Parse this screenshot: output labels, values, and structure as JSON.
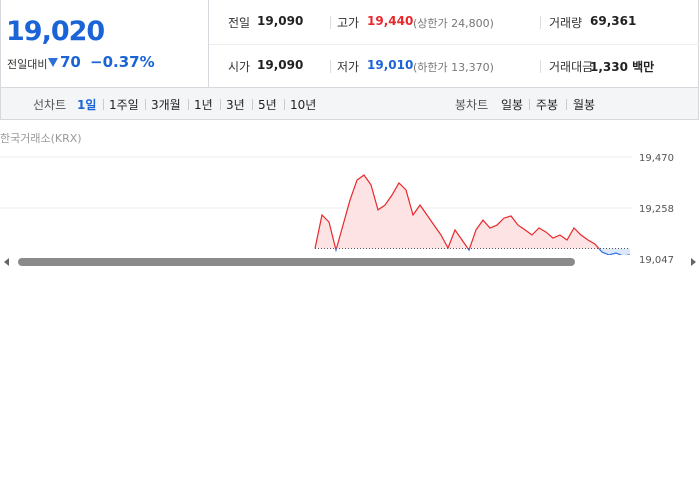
{
  "quote": {
    "price": "19,020",
    "change_label": "전일대비",
    "change": "70",
    "change_pct": "−0.37%"
  },
  "stats": [
    [
      {
        "label": "전일",
        "value": "19,090"
      },
      {
        "label": "고가",
        "value": "19,440",
        "note": "(상한가 24,800)"
      },
      {
        "label": "거래량",
        "value": "69,361"
      }
    ],
    [
      {
        "label": "시가",
        "value": "19,090"
      },
      {
        "label": "저가",
        "value": "19,010",
        "note": "(하한가 13,370)"
      },
      {
        "label": "거래대금",
        "value": "1,330 백만"
      }
    ]
  ],
  "toolbar": {
    "line_label": "선차트",
    "periods": [
      "1일",
      "1주일",
      "3개월",
      "1년",
      "3년",
      "5년",
      "10년"
    ],
    "selected": 0,
    "candle_label": "봉차트",
    "candles": [
      "일봉",
      "주봉",
      "월봉"
    ]
  },
  "source": "한국거래소(KRX)",
  "chart_data": {
    "type": "line",
    "values": [
      19090,
      19229,
      19200,
      19083,
      19187,
      19291,
      19374,
      19395,
      19354,
      19250,
      19270,
      19312,
      19362,
      19333,
      19229,
      19270,
      19229,
      19187,
      19146,
      19092,
      19167,
      19125,
      19083,
      19167,
      19208,
      19175,
      19187,
      19216,
      19225,
      19187,
      19167,
      19146,
      19175,
      19158,
      19133,
      19146,
      19125,
      19175,
      19146,
      19125,
      19108,
      19075,
      19063,
      19071,
      19059,
      19063
    ],
    "baseline": 19090,
    "up_color": "#e8282b",
    "down_color": "#2f70d8",
    "ylim": [
      19047,
      19470
    ],
    "yticks": [
      {
        "value": 19470,
        "label": "19,470"
      },
      {
        "value": 19258,
        "label": "19,258"
      },
      {
        "value": 19047,
        "label": "19,047"
      }
    ],
    "grid": true
  }
}
